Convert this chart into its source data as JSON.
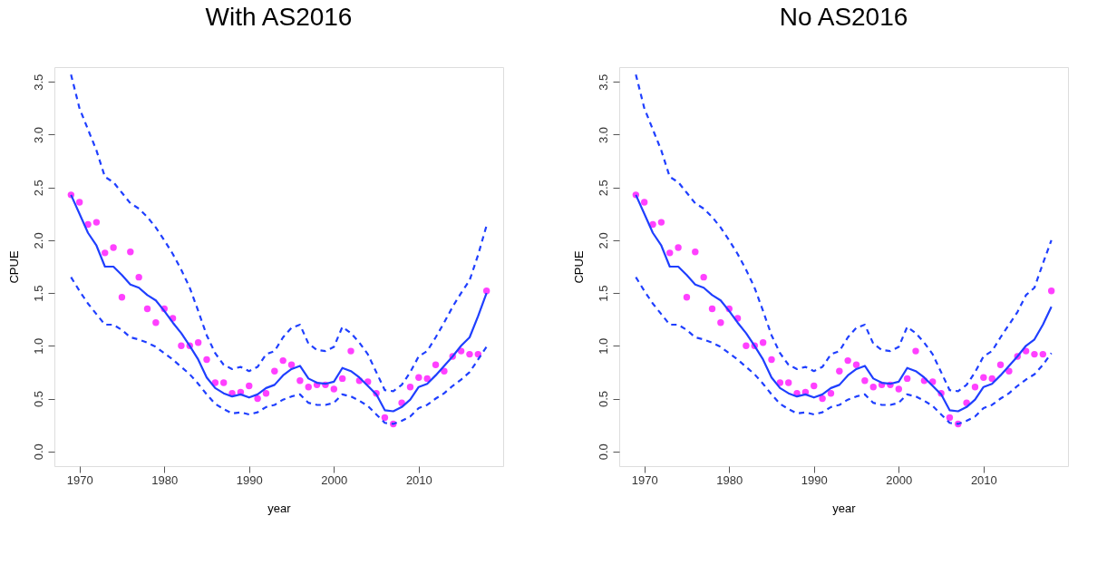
{
  "chart_data": [
    {
      "type": "line",
      "title": "With AS2016",
      "xlabel": "year",
      "ylabel": "CPUE",
      "xlim": [
        1967.04,
        2019.96
      ],
      "xticks": [
        1970,
        1980,
        1990,
        2000,
        2010
      ],
      "ylim": [
        -0.14,
        3.64
      ],
      "yticks": [
        {
          "value": 0,
          "label": "0.0"
        },
        {
          "value": 0.5,
          "label": "0.5"
        },
        {
          "value": 1,
          "label": "1.0"
        },
        {
          "value": 1.5,
          "label": "1.5"
        },
        {
          "value": 2,
          "label": "2.0"
        },
        {
          "value": 2.5,
          "label": "2.5"
        },
        {
          "value": 3,
          "label": "3.0"
        },
        {
          "value": 3.5,
          "label": "3.5"
        }
      ],
      "grid": false,
      "x": [
        1969,
        1970,
        1971,
        1972,
        1973,
        1974,
        1975,
        1976,
        1977,
        1978,
        1979,
        1980,
        1981,
        1982,
        1983,
        1984,
        1985,
        1986,
        1987,
        1988,
        1989,
        1990,
        1991,
        1992,
        1993,
        1994,
        1995,
        1996,
        1997,
        1998,
        1999,
        2000,
        2001,
        2002,
        2003,
        2004,
        2005,
        2006,
        2007,
        2008,
        2009,
        2010,
        2011,
        2012,
        2013,
        2014,
        2015,
        2016,
        2017,
        2018
      ],
      "series": [
        {
          "type": "scatter",
          "marker": "circle",
          "color": "#ff40ff",
          "values": [
            2.43,
            2.36,
            2.15,
            2.17,
            1.88,
            1.93,
            1.46,
            1.89,
            1.65,
            1.35,
            1.22,
            1.35,
            1.26,
            1.0,
            1.0,
            1.03,
            0.87,
            0.65,
            0.65,
            0.55,
            0.56,
            0.62,
            0.5,
            0.55,
            0.76,
            0.86,
            0.82,
            0.67,
            0.61,
            0.63,
            0.63,
            0.59,
            0.69,
            0.95,
            0.67,
            0.66,
            0.55,
            0.32,
            0.26,
            0.46,
            0.61,
            0.7,
            0.69,
            0.82,
            0.76,
            0.9,
            0.95,
            0.92,
            0.92,
            1.52
          ]
        },
        {
          "line_style": "solid",
          "color": "#1f3fff",
          "values": [
            2.43,
            2.25,
            2.07,
            1.95,
            1.75,
            1.75,
            1.67,
            1.58,
            1.55,
            1.48,
            1.43,
            1.33,
            1.22,
            1.12,
            1.0,
            0.87,
            0.7,
            0.6,
            0.55,
            0.52,
            0.54,
            0.51,
            0.54,
            0.6,
            0.63,
            0.72,
            0.78,
            0.81,
            0.69,
            0.65,
            0.64,
            0.66,
            0.79,
            0.76,
            0.7,
            0.62,
            0.54,
            0.39,
            0.38,
            0.42,
            0.49,
            0.61,
            0.64,
            0.72,
            0.81,
            0.9,
            1.0,
            1.08,
            1.28,
            1.5
          ]
        },
        {
          "line_style": "dashed",
          "color": "#1f3fff",
          "values": [
            3.57,
            3.25,
            3.05,
            2.85,
            2.6,
            2.55,
            2.45,
            2.35,
            2.3,
            2.22,
            2.12,
            2.0,
            1.87,
            1.72,
            1.55,
            1.33,
            1.1,
            0.93,
            0.82,
            0.78,
            0.8,
            0.76,
            0.8,
            0.92,
            0.95,
            1.08,
            1.17,
            1.2,
            1.02,
            0.96,
            0.95,
            0.99,
            1.18,
            1.12,
            1.03,
            0.92,
            0.75,
            0.58,
            0.57,
            0.63,
            0.75,
            0.9,
            0.95,
            1.08,
            1.22,
            1.37,
            1.5,
            1.62,
            1.86,
            2.14
          ]
        },
        {
          "line_style": "dashed",
          "color": "#1f3fff",
          "values": [
            1.65,
            1.52,
            1.4,
            1.3,
            1.2,
            1.2,
            1.15,
            1.08,
            1.06,
            1.03,
            0.99,
            0.93,
            0.87,
            0.8,
            0.73,
            0.64,
            0.54,
            0.45,
            0.4,
            0.36,
            0.37,
            0.35,
            0.37,
            0.42,
            0.44,
            0.49,
            0.52,
            0.54,
            0.46,
            0.44,
            0.44,
            0.46,
            0.54,
            0.52,
            0.48,
            0.43,
            0.35,
            0.27,
            0.26,
            0.29,
            0.33,
            0.41,
            0.44,
            0.5,
            0.55,
            0.62,
            0.68,
            0.75,
            0.87,
            0.99
          ]
        }
      ]
    },
    {
      "type": "line",
      "title": "No AS2016",
      "xlabel": "year",
      "ylabel": "CPUE",
      "xlim": [
        1967.04,
        2019.96
      ],
      "xticks": [
        1970,
        1980,
        1990,
        2000,
        2010
      ],
      "ylim": [
        -0.14,
        3.64
      ],
      "yticks": [
        {
          "value": 0,
          "label": "0.0"
        },
        {
          "value": 0.5,
          "label": "0.5"
        },
        {
          "value": 1,
          "label": "1.0"
        },
        {
          "value": 1.5,
          "label": "1.5"
        },
        {
          "value": 2,
          "label": "2.0"
        },
        {
          "value": 2.5,
          "label": "2.5"
        },
        {
          "value": 3,
          "label": "3.0"
        },
        {
          "value": 3.5,
          "label": "3.5"
        }
      ],
      "grid": false,
      "x": [
        1969,
        1970,
        1971,
        1972,
        1973,
        1974,
        1975,
        1976,
        1977,
        1978,
        1979,
        1980,
        1981,
        1982,
        1983,
        1984,
        1985,
        1986,
        1987,
        1988,
        1989,
        1990,
        1991,
        1992,
        1993,
        1994,
        1995,
        1996,
        1997,
        1998,
        1999,
        2000,
        2001,
        2002,
        2003,
        2004,
        2005,
        2006,
        2007,
        2008,
        2009,
        2010,
        2011,
        2012,
        2013,
        2014,
        2015,
        2016,
        2017,
        2018
      ],
      "series": [
        {
          "type": "scatter",
          "marker": "circle",
          "color": "#ff40ff",
          "values": [
            2.43,
            2.36,
            2.15,
            2.17,
            1.88,
            1.93,
            1.46,
            1.89,
            1.65,
            1.35,
            1.22,
            1.35,
            1.26,
            1.0,
            1.0,
            1.03,
            0.87,
            0.65,
            0.65,
            0.55,
            0.56,
            0.62,
            0.5,
            0.55,
            0.76,
            0.86,
            0.82,
            0.67,
            0.61,
            0.63,
            0.63,
            0.59,
            0.69,
            0.95,
            0.67,
            0.66,
            0.55,
            0.32,
            0.26,
            0.46,
            0.61,
            0.7,
            0.69,
            0.82,
            0.76,
            0.9,
            0.95,
            0.92,
            0.92,
            1.52
          ]
        },
        {
          "line_style": "solid",
          "color": "#1f3fff",
          "values": [
            2.43,
            2.25,
            2.07,
            1.95,
            1.75,
            1.75,
            1.67,
            1.58,
            1.55,
            1.48,
            1.43,
            1.33,
            1.22,
            1.12,
            1.0,
            0.87,
            0.7,
            0.6,
            0.55,
            0.52,
            0.54,
            0.51,
            0.54,
            0.6,
            0.63,
            0.72,
            0.78,
            0.81,
            0.69,
            0.65,
            0.64,
            0.66,
            0.79,
            0.76,
            0.7,
            0.62,
            0.54,
            0.39,
            0.38,
            0.42,
            0.49,
            0.61,
            0.64,
            0.72,
            0.81,
            0.9,
            1.0,
            1.06,
            1.2,
            1.37
          ]
        },
        {
          "line_style": "dashed",
          "color": "#1f3fff",
          "values": [
            3.57,
            3.25,
            3.05,
            2.85,
            2.6,
            2.55,
            2.45,
            2.35,
            2.3,
            2.22,
            2.12,
            2.0,
            1.87,
            1.72,
            1.55,
            1.33,
            1.1,
            0.93,
            0.82,
            0.78,
            0.8,
            0.76,
            0.8,
            0.92,
            0.95,
            1.08,
            1.17,
            1.2,
            1.02,
            0.96,
            0.95,
            0.99,
            1.18,
            1.12,
            1.03,
            0.92,
            0.75,
            0.58,
            0.57,
            0.63,
            0.75,
            0.9,
            0.95,
            1.08,
            1.2,
            1.32,
            1.48,
            1.55,
            1.78,
            2.0
          ]
        },
        {
          "line_style": "dashed",
          "color": "#1f3fff",
          "values": [
            1.65,
            1.52,
            1.4,
            1.3,
            1.2,
            1.2,
            1.15,
            1.08,
            1.06,
            1.03,
            0.99,
            0.93,
            0.87,
            0.8,
            0.73,
            0.64,
            0.54,
            0.45,
            0.4,
            0.36,
            0.37,
            0.35,
            0.37,
            0.42,
            0.44,
            0.49,
            0.52,
            0.54,
            0.46,
            0.44,
            0.44,
            0.46,
            0.54,
            0.52,
            0.48,
            0.43,
            0.35,
            0.27,
            0.26,
            0.29,
            0.33,
            0.41,
            0.44,
            0.5,
            0.55,
            0.62,
            0.68,
            0.73,
            0.82,
            0.93
          ]
        }
      ]
    }
  ]
}
